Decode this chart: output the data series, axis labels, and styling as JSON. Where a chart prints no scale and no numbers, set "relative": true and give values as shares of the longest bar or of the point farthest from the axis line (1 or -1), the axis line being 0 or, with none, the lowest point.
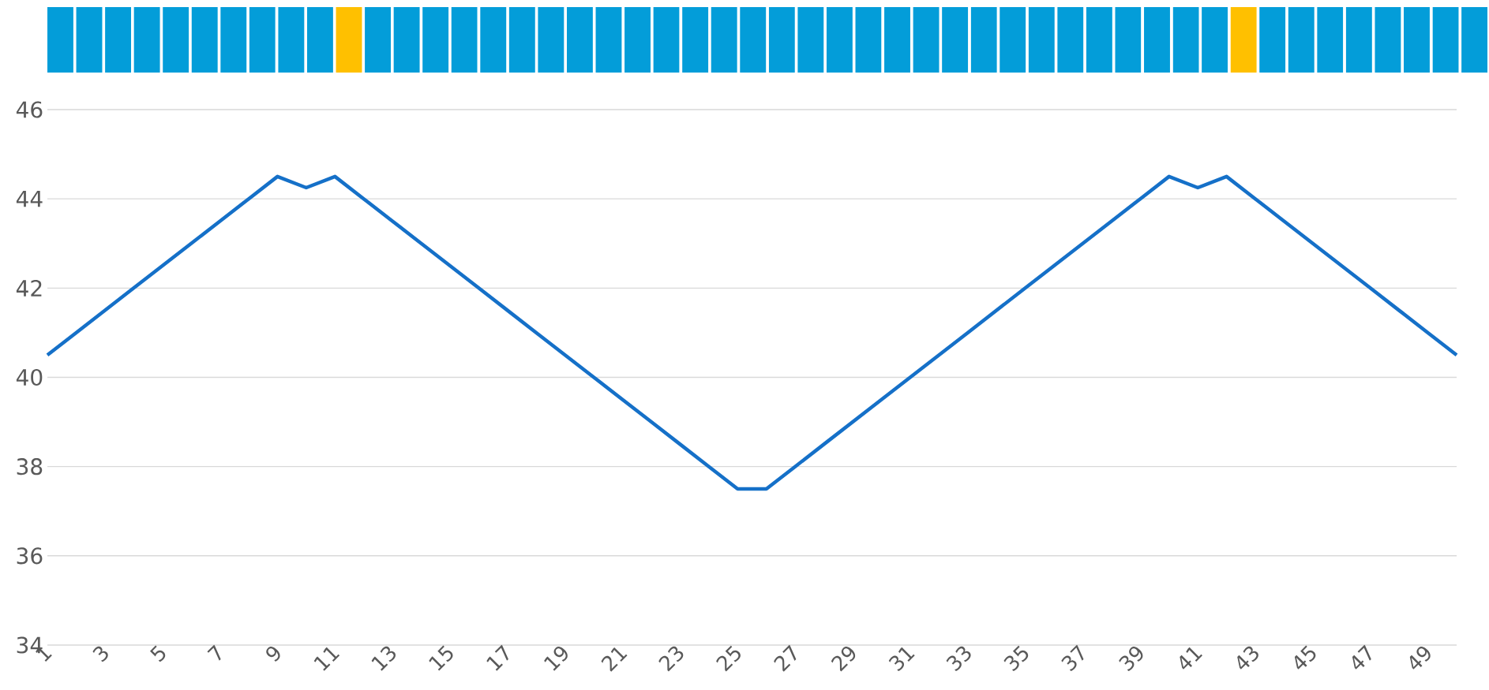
{
  "chart_data": [
    {
      "type": "bar",
      "relative": true,
      "categories": [
        null,
        null,
        null,
        null,
        null,
        null,
        null,
        null,
        null,
        null,
        null,
        null,
        null,
        null,
        null,
        null,
        null,
        null,
        null,
        null,
        null,
        null,
        null,
        null,
        null,
        null,
        null,
        null,
        null,
        null,
        null,
        null,
        null,
        null,
        null,
        null,
        null,
        null,
        null,
        null,
        null,
        null,
        null,
        null,
        null,
        null,
        null,
        null,
        null,
        null
      ],
      "values": [
        1,
        1,
        1,
        1,
        1,
        1,
        1,
        1,
        1,
        1,
        1,
        1,
        1,
        1,
        1,
        1,
        1,
        1,
        1,
        1,
        1,
        1,
        1,
        1,
        1,
        1,
        1,
        1,
        1,
        1,
        1,
        1,
        1,
        1,
        1,
        1,
        1,
        1,
        1,
        1,
        1,
        1,
        1,
        1,
        1,
        1,
        1,
        1,
        1,
        1
      ],
      "colors": [
        "#039dd9",
        "#039dd9",
        "#039dd9",
        "#039dd9",
        "#039dd9",
        "#039dd9",
        "#039dd9",
        "#039dd9",
        "#039dd9",
        "#039dd9",
        "#ffc000",
        "#039dd9",
        "#039dd9",
        "#039dd9",
        "#039dd9",
        "#039dd9",
        "#039dd9",
        "#039dd9",
        "#039dd9",
        "#039dd9",
        "#039dd9",
        "#039dd9",
        "#039dd9",
        "#039dd9",
        "#039dd9",
        "#039dd9",
        "#039dd9",
        "#039dd9",
        "#039dd9",
        "#039dd9",
        "#039dd9",
        "#039dd9",
        "#039dd9",
        "#039dd9",
        "#039dd9",
        "#039dd9",
        "#039dd9",
        "#039dd9",
        "#039dd9",
        "#039dd9",
        "#039dd9",
        "#ffc000",
        "#039dd9",
        "#039dd9",
        "#039dd9",
        "#039dd9",
        "#039dd9",
        "#039dd9",
        "#039dd9",
        "#039dd9"
      ]
    },
    {
      "type": "line",
      "color": "#1570c8",
      "grid": "y",
      "ylim": [
        34,
        46
      ],
      "yticks": [
        34,
        36,
        38,
        40,
        42,
        44,
        46
      ],
      "categories": [
        "1",
        null,
        "3",
        null,
        "5",
        null,
        "7",
        null,
        "9",
        null,
        "11",
        null,
        "13",
        null,
        "15",
        null,
        "17",
        null,
        "19",
        null,
        "21",
        null,
        "23",
        null,
        "25",
        null,
        "27",
        null,
        "29",
        null,
        "31",
        null,
        "33",
        null,
        "35",
        null,
        "37",
        null,
        "39",
        null,
        "41",
        null,
        "43",
        null,
        "45",
        null,
        "47",
        null,
        "49",
        null
      ],
      "values": [
        40.5,
        41,
        41.5,
        42,
        42.5,
        43,
        43.5,
        44,
        44.5,
        44.25,
        44.5,
        44,
        43.5,
        43,
        42.5,
        42,
        41.5,
        41,
        40.5,
        40,
        39.5,
        39,
        38.5,
        38,
        37.5,
        37.5,
        38,
        38.5,
        39,
        39.5,
        40,
        40.5,
        41,
        41.5,
        42,
        42.5,
        43,
        43.5,
        44,
        44.5,
        44.25,
        44.5,
        44,
        43.5,
        43,
        42.5,
        42,
        41.5,
        41,
        40.5
      ]
    }
  ]
}
